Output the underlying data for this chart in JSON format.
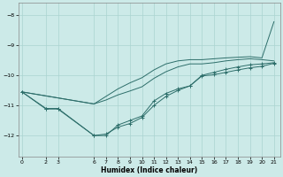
{
  "xlabel": "Humidex (Indice chaleur)",
  "bg_color": "#cceae8",
  "line_color": "#2d6e6a",
  "grid_color": "#aad4d0",
  "xticks": [
    0,
    2,
    3,
    6,
    7,
    8,
    9,
    10,
    11,
    12,
    13,
    14,
    15,
    16,
    17,
    18,
    19,
    20,
    21
  ],
  "yticks": [
    -8,
    -9,
    -10,
    -11,
    -12
  ],
  "xlim": [
    -0.3,
    21.5
  ],
  "ylim": [
    -12.7,
    -7.6
  ],
  "series": {
    "line1": {
      "x": [
        0,
        2,
        3,
        6,
        7,
        8,
        9,
        10,
        11,
        12,
        13,
        14,
        15,
        16,
        17,
        18,
        19,
        20,
        21
      ],
      "y": [
        -10.55,
        -11.1,
        -11.1,
        -12.0,
        -12.0,
        -11.65,
        -11.5,
        -11.35,
        -10.85,
        -10.6,
        -10.45,
        -10.35,
        -10.0,
        -9.9,
        -9.8,
        -9.72,
        -9.65,
        -9.62,
        -9.58
      ],
      "marker": true
    },
    "line2": {
      "x": [
        0,
        2,
        3,
        6,
        7,
        8,
        9,
        10,
        11,
        12,
        13,
        14,
        15,
        16,
        17,
        18,
        19,
        20,
        21
      ],
      "y": [
        -10.55,
        -11.12,
        -11.12,
        -12.0,
        -11.95,
        -11.72,
        -11.6,
        -11.4,
        -11.0,
        -10.7,
        -10.5,
        -10.35,
        -10.02,
        -9.98,
        -9.9,
        -9.82,
        -9.75,
        -9.7,
        -9.6
      ],
      "marker": true
    },
    "line3": {
      "x": [
        0,
        6,
        7,
        8,
        9,
        10,
        11,
        12,
        13,
        14,
        15,
        16,
        17,
        18,
        19,
        20,
        21
      ],
      "y": [
        -10.55,
        -10.95,
        -10.82,
        -10.65,
        -10.52,
        -10.38,
        -10.1,
        -9.88,
        -9.72,
        -9.62,
        -9.62,
        -9.58,
        -9.52,
        -9.48,
        -9.45,
        -9.48,
        -9.52
      ],
      "marker": false
    },
    "line4": {
      "x": [
        0,
        6,
        7,
        8,
        9,
        10,
        11,
        12,
        13,
        14,
        15,
        16,
        17,
        18,
        19,
        20,
        21
      ],
      "y": [
        -10.55,
        -10.95,
        -10.7,
        -10.45,
        -10.25,
        -10.08,
        -9.82,
        -9.62,
        -9.52,
        -9.48,
        -9.48,
        -9.45,
        -9.42,
        -9.4,
        -9.38,
        -9.42,
        -8.22
      ],
      "marker": false
    }
  }
}
